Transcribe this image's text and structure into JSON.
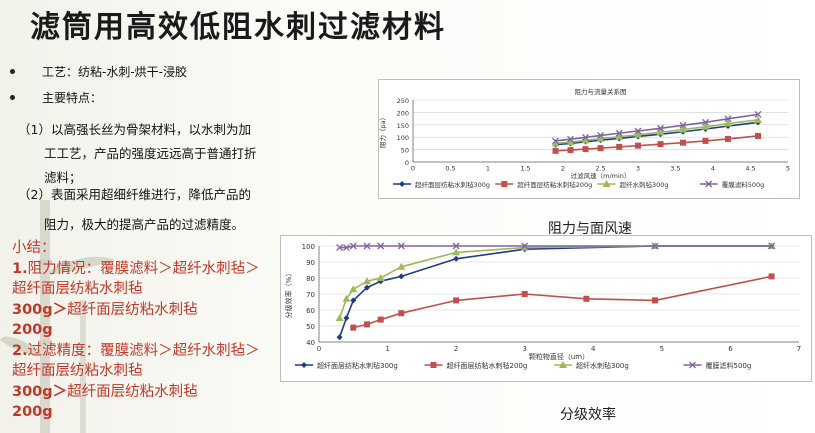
{
  "slide": {
    "title": "滤筒用高效低阻水刺过滤材料",
    "bullets": [
      {
        "label": "工艺：纺粘-水刺-烘干-浸胶"
      },
      {
        "label": "主要特点："
      }
    ],
    "points": [
      {
        "line1": "（1）以高强长丝为骨架材料，以水刺为加",
        "line2": "工工艺，产品的强度远远高于普通打折",
        "line3": "滤料；"
      },
      {
        "line1": "（2）表面采用超细纤维进行，降低产品的",
        "line2": "阻力，极大的提高产品的过滤精度。"
      }
    ],
    "summary": {
      "heading": "小结：",
      "item1_num": "1.",
      "item1_text": "阻力情况：覆膜滤料＞超纤水刺毡＞超纤面层纺粘水刺毡",
      "item1_tail_bold": "300g＞",
      "item1_tail_text": "超纤面层纺粘水刺毡",
      "item1_end_bold": "200g",
      "item2_num": "2.",
      "item2_text": "过滤精度：覆膜滤料＞超纤水刺毡＞超纤面层纺粘水刺毡",
      "item2_tail_bold": "300g＞",
      "item2_tail_text": "超纤面层纺粘水刺毡",
      "item2_end_bold": "200g"
    },
    "caption_resistance": "阻力与面风速",
    "caption_efficiency": "分级效率"
  },
  "colors": {
    "summary_red": "#c0392b",
    "series_blue": "#1f3c88",
    "series_red": "#c0504d",
    "series_green": "#9bbb59",
    "series_purple": "#8064a2"
  },
  "chart_data": [
    {
      "type": "line",
      "title": "阻力与流量关系图",
      "xlabel": "过滤风速（m/min）",
      "ylabel": "阻力（pa）",
      "xlim": [
        0,
        5
      ],
      "ylim": [
        0,
        250
      ],
      "xticks": [
        "0",
        "0.5",
        "1",
        "1.5",
        "2",
        "2.5",
        "3",
        "3.5",
        "4",
        "4.5",
        "5"
      ],
      "yticks": [
        "0",
        "50",
        "100",
        "150",
        "200",
        "250"
      ],
      "legend_position": "bottom",
      "series": [
        {
          "name": "超纤面层纺粘水刺毡300g",
          "color": "#1f3c88",
          "marker": "diamond",
          "x": [
            1.9,
            2.1,
            2.3,
            2.5,
            2.75,
            3.0,
            3.3,
            3.6,
            3.9,
            4.2,
            4.6
          ],
          "y": [
            70,
            75,
            82,
            88,
            95,
            103,
            112,
            122,
            133,
            145,
            160
          ]
        },
        {
          "name": "超纤面层纺粘水刺毡200g",
          "color": "#c0504d",
          "marker": "square",
          "x": [
            1.9,
            2.1,
            2.3,
            2.5,
            2.75,
            3.0,
            3.3,
            3.6,
            3.9,
            4.2,
            4.6
          ],
          "y": [
            45,
            48,
            52,
            56,
            61,
            66,
            72,
            78,
            85,
            93,
            105
          ]
        },
        {
          "name": "超纤水刺毡300g",
          "color": "#9bbb59",
          "marker": "triangle",
          "x": [
            1.9,
            2.1,
            2.3,
            2.5,
            2.75,
            3.0,
            3.3,
            3.6,
            3.9,
            4.2,
            4.6
          ],
          "y": [
            75,
            80,
            87,
            94,
            102,
            110,
            120,
            131,
            142,
            155,
            170
          ]
        },
        {
          "name": "覆膜滤料500g",
          "color": "#8064a2",
          "marker": "x",
          "x": [
            1.9,
            2.1,
            2.3,
            2.5,
            2.75,
            3.0,
            3.3,
            3.6,
            3.9,
            4.2,
            4.6
          ],
          "y": [
            85,
            92,
            99,
            107,
            116,
            125,
            136,
            148,
            160,
            174,
            192
          ]
        }
      ]
    },
    {
      "type": "line",
      "title": "",
      "xlabel": "颗粒物直径（um）",
      "ylabel": "分级效率（%）",
      "xlim": [
        0,
        7
      ],
      "ylim": [
        40,
        100
      ],
      "xticks": [
        "0",
        "1",
        "2",
        "3",
        "4",
        "5",
        "6",
        "7"
      ],
      "yticks": [
        "40",
        "50",
        "60",
        "70",
        "80",
        "90",
        "100"
      ],
      "legend_position": "bottom",
      "series": [
        {
          "name": "超纤面层纺粘水刺毡300g",
          "color": "#1f3c88",
          "marker": "diamond",
          "x": [
            0.3,
            0.4,
            0.5,
            0.7,
            0.9,
            1.2,
            2.0,
            3.0,
            4.9,
            6.6
          ],
          "y": [
            43,
            55,
            66,
            74,
            78,
            81,
            92,
            98,
            100,
            100
          ]
        },
        {
          "name": "超纤面层纺粘水刺毡200g",
          "color": "#c0504d",
          "marker": "square",
          "x": [
            0.5,
            0.7,
            0.9,
            1.2,
            2.0,
            3.0,
            3.9,
            4.9,
            6.6
          ],
          "y": [
            49,
            51,
            54,
            58,
            66,
            70,
            67,
            66,
            81
          ]
        },
        {
          "name": "超纤水刺毡300g",
          "color": "#9bbb59",
          "marker": "triangle",
          "x": [
            0.3,
            0.4,
            0.5,
            0.7,
            0.9,
            1.2,
            2.0,
            3.0,
            4.9,
            6.6
          ],
          "y": [
            55,
            67,
            73,
            78,
            80,
            87,
            96,
            99,
            100,
            100
          ]
        },
        {
          "name": "覆膜滤料500g",
          "color": "#8064a2",
          "marker": "x",
          "x": [
            0.3,
            0.4,
            0.5,
            0.7,
            0.9,
            1.2,
            2.0,
            3.0,
            4.9,
            6.6
          ],
          "y": [
            99,
            99,
            100,
            100,
            100,
            100,
            100,
            100,
            100,
            100
          ]
        }
      ]
    }
  ]
}
